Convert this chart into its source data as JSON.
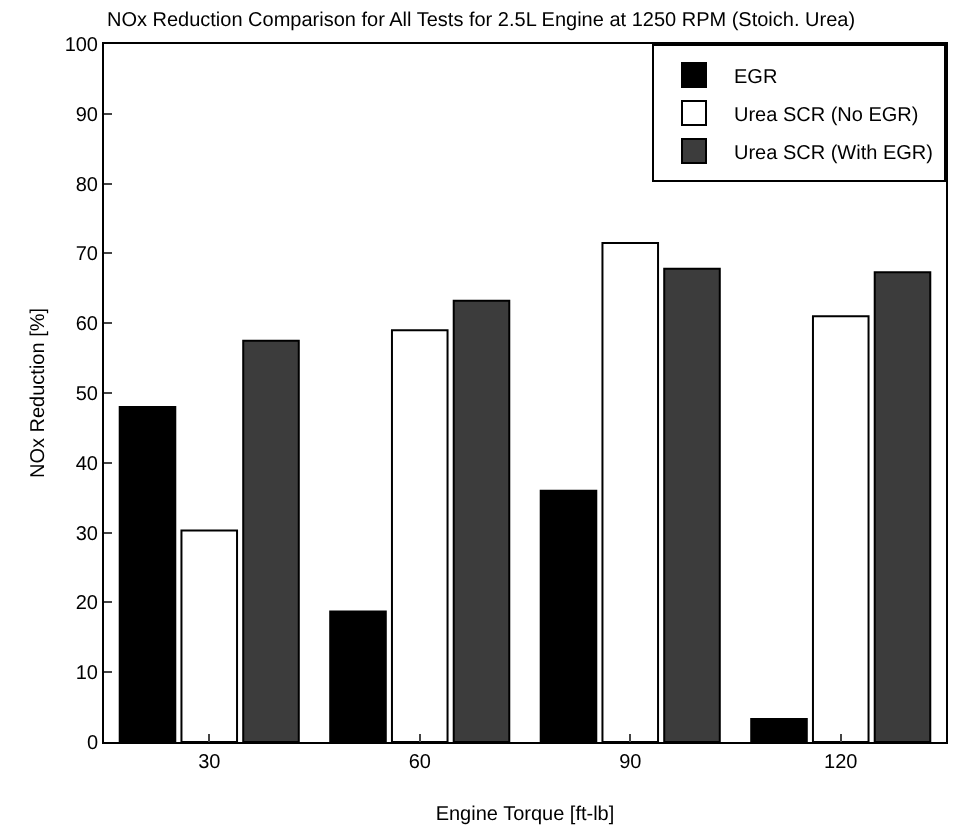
{
  "chart_data": {
    "type": "bar",
    "title": "NOx Reduction Comparison for All Tests for 2.5L Engine at 1250 RPM (Stoich. Urea)",
    "xlabel": "Engine Torque [ft-lb]",
    "ylabel": "NOx Reduction [%]",
    "categories": [
      "30",
      "60",
      "90",
      "120"
    ],
    "series": [
      {
        "name": "EGR",
        "color": "#000000",
        "values": [
          48,
          18.7,
          36,
          3.3
        ]
      },
      {
        "name": "Urea SCR (No EGR)",
        "color": "#ffffff",
        "values": [
          30.3,
          59,
          71.5,
          61
        ]
      },
      {
        "name": "Urea SCR (With EGR)",
        "color": "#3c3c3c",
        "values": [
          57.5,
          63.2,
          67.8,
          67.3
        ]
      }
    ],
    "ylim": [
      0,
      100
    ],
    "yticks": [
      0,
      10,
      20,
      30,
      40,
      50,
      60,
      70,
      80,
      90,
      100
    ],
    "grid": false,
    "legend": "top right"
  }
}
